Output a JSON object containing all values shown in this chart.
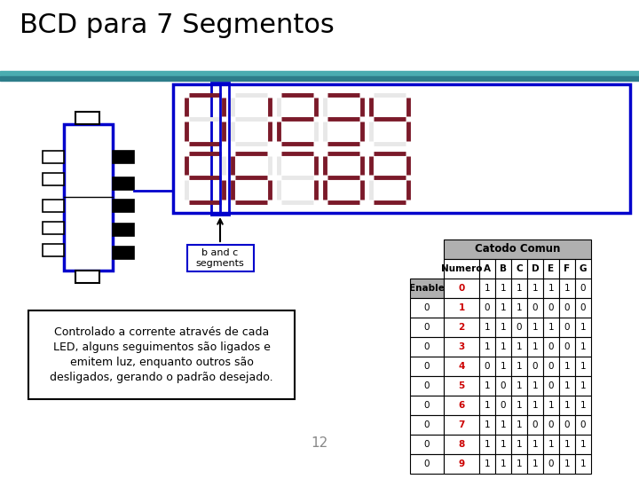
{
  "title": "BCD para 7 Segmentos",
  "title_fontsize": 22,
  "title_color": "#000000",
  "bg_color": "#ffffff",
  "teal_color1": "#4aacb0",
  "teal_color2": "#2d7d8a",
  "text_box_text": "Controlado a corrente através de cada\nLED, alguns seguimentos são ligados e\nemitem luz, enquanto outros são\ndesligados, gerando o padrão desejado.",
  "page_number": "12",
  "segment_color_on": "#7b1a2a",
  "segment_color_off": "#e8e8e8",
  "blue_color": "#0000cc",
  "table_header_bg": "#b0b0b0",
  "table_red": "#cc0000",
  "table_data": {
    "rows": [
      [
        "Enable",
        "0",
        "1",
        "1",
        "1",
        "1",
        "1",
        "1",
        "0"
      ],
      [
        "0",
        "1",
        "0",
        "1",
        "1",
        "0",
        "0",
        "0",
        "0"
      ],
      [
        "0",
        "2",
        "1",
        "1",
        "0",
        "1",
        "1",
        "0",
        "1"
      ],
      [
        "0",
        "3",
        "1",
        "1",
        "1",
        "1",
        "0",
        "0",
        "1"
      ],
      [
        "0",
        "4",
        "0",
        "1",
        "1",
        "0",
        "0",
        "1",
        "1"
      ],
      [
        "0",
        "5",
        "1",
        "0",
        "1",
        "1",
        "0",
        "1",
        "1"
      ],
      [
        "0",
        "6",
        "1",
        "0",
        "1",
        "1",
        "1",
        "1",
        "1"
      ],
      [
        "0",
        "7",
        "1",
        "1",
        "1",
        "0",
        "0",
        "0",
        "0"
      ],
      [
        "0",
        "8",
        "1",
        "1",
        "1",
        "1",
        "1",
        "1",
        "1"
      ],
      [
        "0",
        "9",
        "1",
        "1",
        "1",
        "1",
        "0",
        "1",
        "1"
      ]
    ]
  },
  "segment_patterns": {
    "0": [
      1,
      1,
      1,
      1,
      1,
      1,
      0
    ],
    "1": [
      0,
      1,
      1,
      0,
      0,
      0,
      0
    ],
    "2": [
      1,
      1,
      0,
      1,
      1,
      0,
      1
    ],
    "3": [
      1,
      1,
      1,
      1,
      0,
      0,
      1
    ],
    "4": [
      0,
      1,
      1,
      0,
      0,
      1,
      1
    ],
    "5": [
      1,
      0,
      1,
      1,
      0,
      1,
      1
    ],
    "6": [
      1,
      0,
      1,
      1,
      1,
      1,
      1
    ],
    "7": [
      1,
      1,
      1,
      0,
      0,
      0,
      0
    ],
    "8": [
      1,
      1,
      1,
      1,
      1,
      1,
      1
    ],
    "9": [
      1,
      1,
      1,
      1,
      0,
      1,
      1
    ]
  }
}
